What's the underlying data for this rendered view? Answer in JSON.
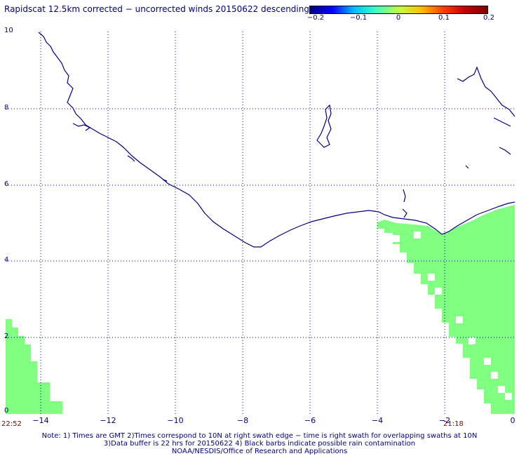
{
  "title": "Rapidscat 12.5km corrected − uncorrected winds 20150622 descending",
  "colorbar": {
    "ticks": [
      "−0.2",
      "−0.1",
      "0",
      "0.1",
      "0.2"
    ],
    "range": [
      -0.2,
      0.2
    ]
  },
  "axes": {
    "y_ticks": [
      "10",
      "8",
      "6",
      "4",
      "2",
      "0"
    ],
    "x_ticks": [
      "−14",
      "−12",
      "−10",
      "−8",
      "−6",
      "−4",
      "−2",
      "0"
    ],
    "lon_range": [
      -15,
      0
    ],
    "lat_range": [
      0,
      10
    ],
    "grid": true
  },
  "times": {
    "left": "22:52",
    "right": "21:18"
  },
  "notes": {
    "line1": "Note: 1) Times are GMT 2)Times correspond to 10N at right swath edge − time is right swath for overlapping swaths at 10N",
    "line2": "3)Data buffer is 22 hrs for 20150622 4) Black barbs indicate possible rain contamination",
    "line3": "NOAA/NESDIS/Office of Research and Applications"
  },
  "colors": {
    "coastline": "#000080",
    "swath_fill": "#80ff80",
    "grid": "#000080",
    "time_label": "#8b0000"
  }
}
